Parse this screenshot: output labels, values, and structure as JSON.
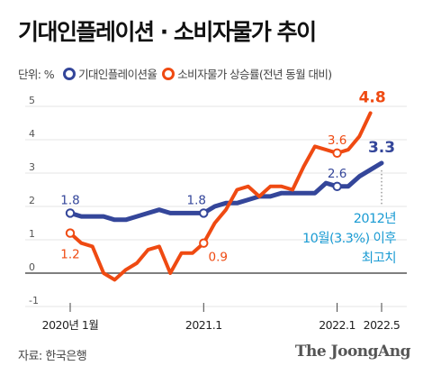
{
  "title": "기대인플레이션 · 소비자물가 추이",
  "legend": {
    "unit": "단위: %",
    "series1_label": "기대인플레이션율",
    "series2_label": "소비자물가 상승률(전년 동월 대비)"
  },
  "colors": {
    "expected": "#34469a",
    "cpi": "#ef4a12",
    "note": "#1a9bd3"
  },
  "source": "자료: 한국은행",
  "logo": "The JoongAng",
  "chart_data": {
    "type": "line",
    "ylim": [
      -1,
      5
    ],
    "yticks": [
      -1,
      0,
      1,
      2,
      3,
      4,
      5
    ],
    "ytick_labels": [
      "-1",
      "0",
      "1",
      "2",
      "3",
      "4",
      "5"
    ],
    "xlim": [
      0,
      28
    ],
    "xticks": [
      {
        "x": 0,
        "label": "2020년 1월"
      },
      {
        "x": 12,
        "label": "2021.1"
      },
      {
        "x": 24,
        "label": "2022.1"
      },
      {
        "x": 28,
        "label": "2022.5"
      }
    ],
    "grid": true,
    "legend_position": "top-left",
    "series": [
      {
        "name": "기대인플레이션율",
        "key": "expected",
        "values": [
          1.8,
          1.7,
          1.7,
          1.7,
          1.6,
          1.6,
          1.7,
          1.8,
          1.9,
          1.8,
          1.8,
          1.8,
          1.8,
          2.0,
          2.1,
          2.1,
          2.2,
          2.3,
          2.3,
          2.4,
          2.4,
          2.4,
          2.4,
          2.7,
          2.6,
          2.6,
          2.9,
          3.1,
          3.3
        ]
      },
      {
        "name": "소비자물가 상승률(전년 동월 대비)",
        "key": "cpi",
        "values": [
          1.2,
          0.9,
          0.8,
          0.0,
          -0.2,
          0.1,
          0.3,
          0.7,
          0.8,
          0.0,
          0.6,
          0.6,
          0.9,
          1.5,
          1.9,
          2.5,
          2.6,
          2.3,
          2.6,
          2.6,
          2.5,
          3.2,
          3.8,
          3.7,
          3.6,
          3.7,
          4.1,
          4.8
        ]
      }
    ],
    "annotations": [
      {
        "series": "expected",
        "x": 0,
        "label": "1.8"
      },
      {
        "series": "expected",
        "x": 12,
        "label": "1.8"
      },
      {
        "series": "expected",
        "x": 24,
        "label": "2.6"
      },
      {
        "series": "expected",
        "x": 28,
        "label": "3.3"
      },
      {
        "series": "cpi",
        "x": 0,
        "label": "1.2"
      },
      {
        "series": "cpi",
        "x": 12,
        "label": "0.9"
      },
      {
        "series": "cpi",
        "x": 24,
        "label": "3.6"
      },
      {
        "series": "cpi",
        "x": 27,
        "label": "4.8"
      }
    ],
    "note_lines": [
      "2012년",
      "10월(3.3%) 이후",
      "최고치"
    ]
  }
}
